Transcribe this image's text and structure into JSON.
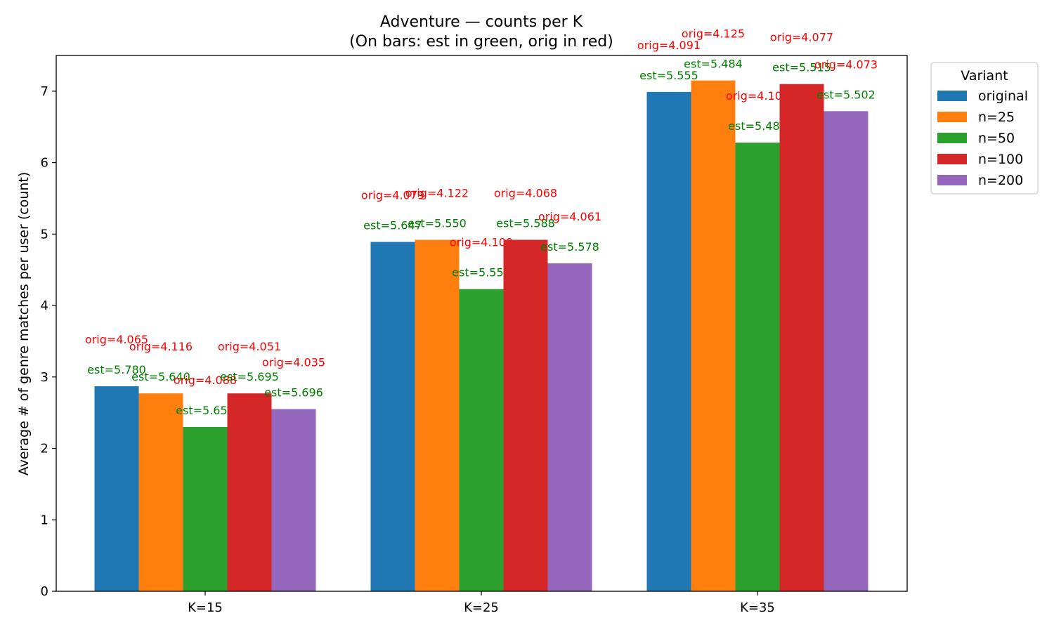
{
  "chart_data": {
    "type": "bar",
    "title": "Adventure — counts per K",
    "subtitle": "(On bars: est in green, orig in red)",
    "xlabel": "",
    "ylabel": "Average # of genre matches per user (count)",
    "ylim": [
      0,
      7.5
    ],
    "yticks": [
      0,
      1,
      2,
      3,
      4,
      5,
      6,
      7
    ],
    "categories": [
      "K=15",
      "K=25",
      "K=35"
    ],
    "legend": {
      "title": "Variant",
      "placement": "upper-right-outside"
    },
    "series": [
      {
        "name": "original",
        "color": "#1f77b4",
        "values": [
          2.87,
          4.89,
          6.99
        ],
        "est": [
          "est=5.780",
          "est=5.647",
          "est=5.555"
        ],
        "orig": [
          "orig=4.065",
          "orig=4.079",
          "orig=4.091"
        ]
      },
      {
        "name": "n=25",
        "color": "#ff7f0e",
        "values": [
          2.77,
          4.92,
          7.15
        ],
        "est": [
          "est=5.640",
          "est=5.550",
          "est=5.484"
        ],
        "orig": [
          "orig=4.116",
          "orig=4.122",
          "orig=4.125"
        ]
      },
      {
        "name": "n=50",
        "color": "#2ca02c",
        "values": [
          2.3,
          4.23,
          6.28
        ],
        "est": [
          "est=5.651",
          "est=5.556",
          "est=5.486"
        ],
        "orig": [
          "orig=4.088",
          "orig=4.100",
          "orig=4.107"
        ]
      },
      {
        "name": "n=100",
        "color": "#d62728",
        "values": [
          2.77,
          4.92,
          7.1
        ],
        "est": [
          "est=5.695",
          "est=5.588",
          "est=5.515"
        ],
        "orig": [
          "orig=4.051",
          "orig=4.068",
          "orig=4.077"
        ]
      },
      {
        "name": "n=200",
        "color": "#9467bd",
        "values": [
          2.55,
          4.59,
          6.72
        ],
        "est": [
          "est=5.696",
          "est=5.578",
          "est=5.502"
        ],
        "orig": [
          "orig=4.035",
          "orig=4.061",
          "orig=4.073"
        ]
      }
    ],
    "est_label_color": "#008000",
    "orig_label_color": "#ff0000"
  }
}
